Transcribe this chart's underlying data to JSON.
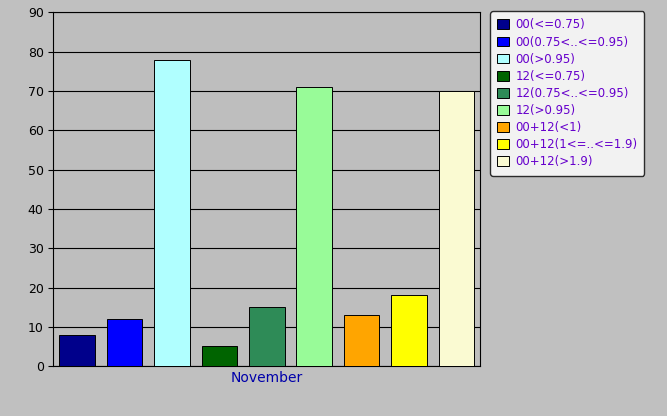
{
  "month": "November",
  "series": [
    {
      "label": "00(<=0.75)",
      "value": 8,
      "color": "#00008B"
    },
    {
      "label": "00(0.75<..<=0.95)",
      "value": 12,
      "color": "#0000FF"
    },
    {
      "label": "00(>0.95)",
      "value": 78,
      "color": "#B0FFFF"
    },
    {
      "label": "12(<=0.75)",
      "value": 5,
      "color": "#006400"
    },
    {
      "label": "12(0.75<..<=0.95)",
      "value": 15,
      "color": "#2E8B57"
    },
    {
      "label": "12(>0.95)",
      "value": 71,
      "color": "#98FB98"
    },
    {
      "label": "00+12(<1)",
      "value": 13,
      "color": "#FFA500"
    },
    {
      "label": "00+12(1<=..<=1.9)",
      "value": 18,
      "color": "#FFFF00"
    },
    {
      "label": "00+12(>1.9)",
      "value": 70,
      "color": "#FAFAD2"
    }
  ],
  "ylim": [
    0,
    90
  ],
  "yticks": [
    0,
    10,
    20,
    30,
    40,
    50,
    60,
    70,
    80,
    90
  ],
  "background_color": "#C0C0C0",
  "plot_bg_color": "#BEBEBE",
  "grid_color": "#000000",
  "bar_width": 0.75,
  "bar_edge_color": "#000000",
  "legend_font_size": 8.5
}
